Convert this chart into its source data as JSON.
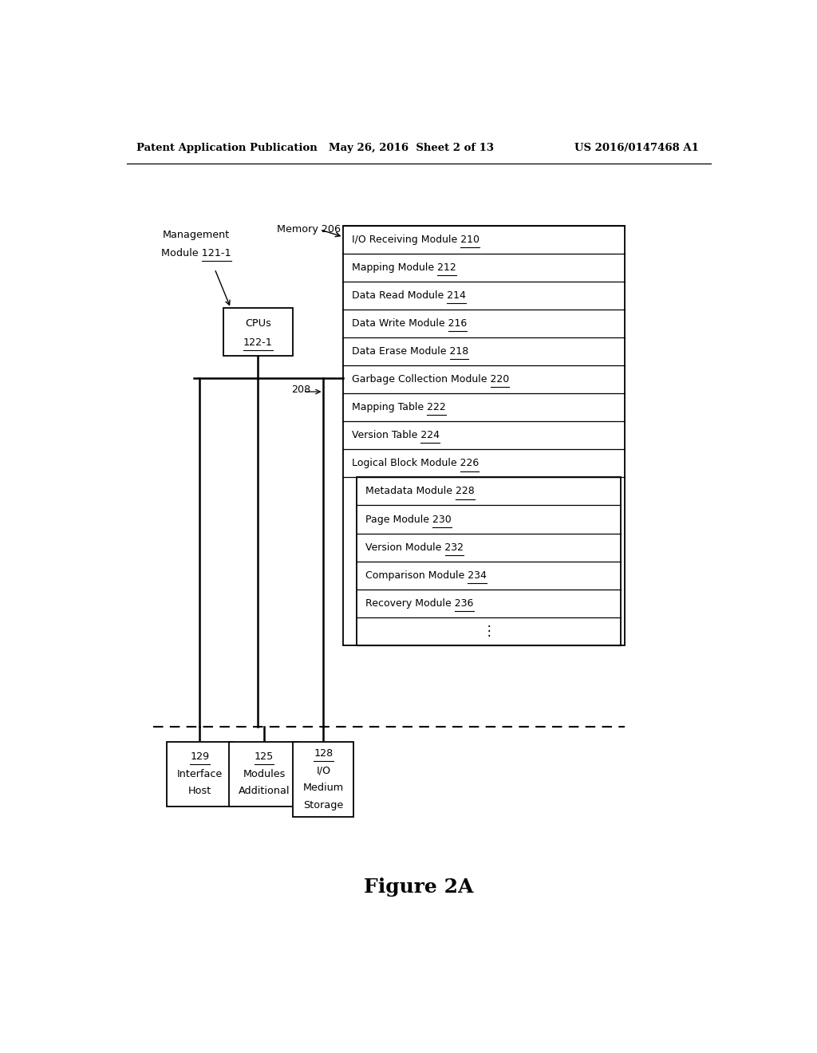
{
  "bg_color": "#ffffff",
  "text_color": "#000000",
  "header_left": "Patent Application Publication",
  "header_mid": "May 26, 2016  Sheet 2 of 13",
  "header_right": "US 2016/0147468 A1",
  "figure_caption": "Figure 2A",
  "modules_outer": [
    {
      "text": "I/O Receiving Module ",
      "num": "210"
    },
    {
      "text": "Mapping Module ",
      "num": "212"
    },
    {
      "text": "Data Read Module ",
      "num": "214"
    },
    {
      "text": "Data Write Module ",
      "num": "216"
    },
    {
      "text": "Data Erase Module ",
      "num": "218"
    },
    {
      "text": "Garbage Collection Module ",
      "num": "220"
    },
    {
      "text": "Mapping Table ",
      "num": "222"
    },
    {
      "text": "Version Table ",
      "num": "224"
    },
    {
      "text": "Logical Block Module ",
      "num": "226"
    }
  ],
  "modules_inner": [
    {
      "text": "Metadata Module ",
      "num": "228"
    },
    {
      "text": "Page Module ",
      "num": "230"
    },
    {
      "text": "Version Module ",
      "num": "232"
    },
    {
      "text": "Comparison Module ",
      "num": "234"
    },
    {
      "text": "Recovery Module ",
      "num": "236"
    }
  ],
  "memory_label": "Memory 206",
  "bus_label": "208",
  "mgmt_label_line1": "Management",
  "mgmt_label_line2": "Module 121-1",
  "cpu_label_line1": "CPUs",
  "cpu_label_line2": "122-1",
  "bottom_boxes": [
    {
      "lines": [
        "Host",
        "Interface",
        "129"
      ],
      "num": "129"
    },
    {
      "lines": [
        "Additional",
        "Modules",
        "125"
      ],
      "num": "125"
    },
    {
      "lines": [
        "Storage",
        "Medium",
        "I/O",
        "128"
      ],
      "num": "128"
    }
  ]
}
